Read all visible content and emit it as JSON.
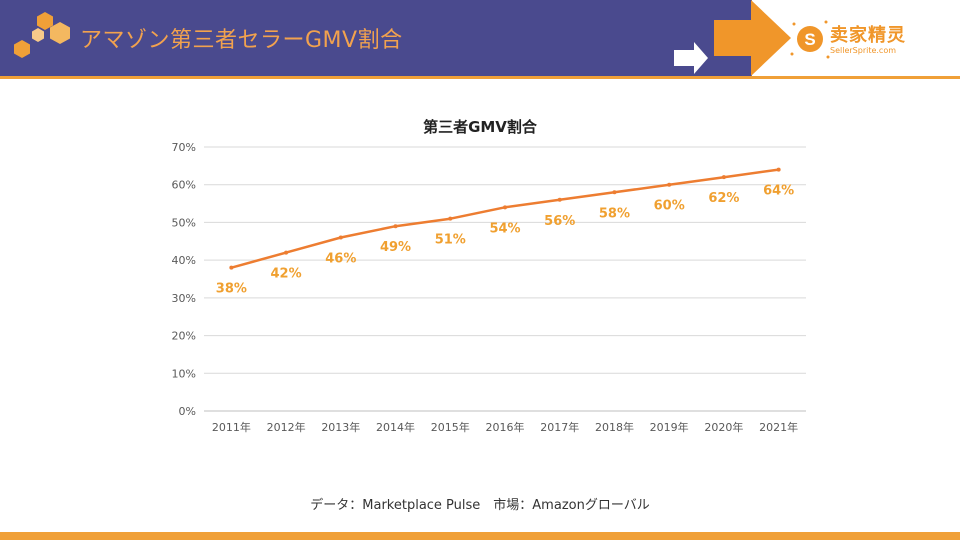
{
  "slide": {
    "title": "アマゾン第三者セラーGMV割合",
    "source": "データ：Marketplace Pulse　市場：Amazonグローバル"
  },
  "brand": {
    "name_cn": "卖家精灵",
    "name_en": "SellerSprite.com"
  },
  "colors": {
    "header_bg": "#4a4a8e",
    "accent": "#f0a038",
    "line": "#ed7d31",
    "label": "#f0a030",
    "title_text": "#f2a24e"
  },
  "chart_data": {
    "type": "line",
    "title": "第三者GMV割合",
    "categories": [
      "2011年",
      "2012年",
      "2013年",
      "2014年",
      "2015年",
      "2016年",
      "2017年",
      "2018年",
      "2019年",
      "2020年",
      "2021年"
    ],
    "values": [
      38,
      42,
      46,
      49,
      51,
      54,
      56,
      58,
      60,
      62,
      64
    ],
    "data_labels": [
      "38%",
      "42%",
      "46%",
      "49%",
      "51%",
      "54%",
      "56%",
      "58%",
      "60%",
      "62%",
      "64%"
    ],
    "y_ticks": [
      "0%",
      "10%",
      "20%",
      "30%",
      "40%",
      "50%",
      "60%",
      "70%"
    ],
    "ylim": [
      0,
      70
    ],
    "grid": true,
    "legend": "none",
    "xlabel": "",
    "ylabel": ""
  }
}
